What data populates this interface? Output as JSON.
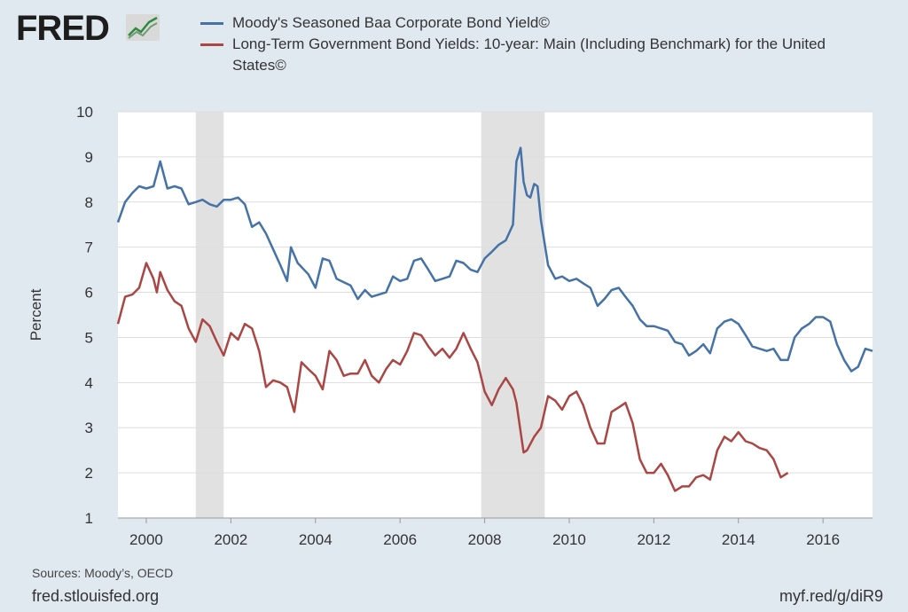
{
  "brand": {
    "name": "FRED",
    "icon": "chart-line-icon"
  },
  "colors": {
    "background": "#e1e9f0",
    "plot_bg": "#ffffff",
    "grid": "#dddddd",
    "recession": "#e1e1e1",
    "baa": "#4572a7",
    "treasury": "#aa4643",
    "text": "#333333"
  },
  "chart_data": {
    "type": "line",
    "title": "",
    "xlabel": "",
    "ylabel": "Percent",
    "xlim": [
      1999.33,
      2017.17
    ],
    "ylim": [
      1,
      10
    ],
    "y_ticks": [
      1,
      2,
      3,
      4,
      5,
      6,
      7,
      8,
      9,
      10
    ],
    "x_ticks": [
      2000,
      2002,
      2004,
      2006,
      2008,
      2010,
      2012,
      2014,
      2016
    ],
    "grid": true,
    "legend_position": "top",
    "recessions": [
      [
        2001.17,
        2001.83
      ],
      [
        2007.92,
        2009.42
      ]
    ],
    "series": [
      {
        "name": "Moody's Seasoned Baa Corporate Bond Yield©",
        "color": "#4572a7",
        "points": [
          [
            1999.33,
            7.55
          ],
          [
            1999.5,
            8.0
          ],
          [
            1999.67,
            8.2
          ],
          [
            1999.83,
            8.35
          ],
          [
            2000.0,
            8.3
          ],
          [
            2000.17,
            8.35
          ],
          [
            2000.33,
            8.9
          ],
          [
            2000.5,
            8.3
          ],
          [
            2000.67,
            8.35
          ],
          [
            2000.83,
            8.3
          ],
          [
            2001.0,
            7.95
          ],
          [
            2001.17,
            8.0
          ],
          [
            2001.33,
            8.05
          ],
          [
            2001.5,
            7.95
          ],
          [
            2001.67,
            7.9
          ],
          [
            2001.83,
            8.05
          ],
          [
            2002.0,
            8.05
          ],
          [
            2002.17,
            8.1
          ],
          [
            2002.33,
            7.95
          ],
          [
            2002.5,
            7.45
          ],
          [
            2002.67,
            7.55
          ],
          [
            2002.83,
            7.3
          ],
          [
            2003.0,
            6.95
          ],
          [
            2003.17,
            6.6
          ],
          [
            2003.33,
            6.25
          ],
          [
            2003.42,
            7.0
          ],
          [
            2003.58,
            6.65
          ],
          [
            2003.83,
            6.4
          ],
          [
            2004.0,
            6.1
          ],
          [
            2004.17,
            6.75
          ],
          [
            2004.33,
            6.7
          ],
          [
            2004.5,
            6.3
          ],
          [
            2004.83,
            6.15
          ],
          [
            2005.0,
            5.85
          ],
          [
            2005.17,
            6.05
          ],
          [
            2005.33,
            5.9
          ],
          [
            2005.67,
            6.0
          ],
          [
            2005.83,
            6.35
          ],
          [
            2006.0,
            6.25
          ],
          [
            2006.17,
            6.3
          ],
          [
            2006.33,
            6.7
          ],
          [
            2006.5,
            6.75
          ],
          [
            2006.67,
            6.5
          ],
          [
            2006.83,
            6.25
          ],
          [
            2007.0,
            6.3
          ],
          [
            2007.17,
            6.35
          ],
          [
            2007.33,
            6.7
          ],
          [
            2007.5,
            6.65
          ],
          [
            2007.67,
            6.5
          ],
          [
            2007.83,
            6.45
          ],
          [
            2008.0,
            6.75
          ],
          [
            2008.17,
            6.9
          ],
          [
            2008.33,
            7.05
          ],
          [
            2008.5,
            7.15
          ],
          [
            2008.67,
            7.5
          ],
          [
            2008.75,
            8.9
          ],
          [
            2008.85,
            9.2
          ],
          [
            2008.92,
            8.45
          ],
          [
            2009.0,
            8.15
          ],
          [
            2009.08,
            8.1
          ],
          [
            2009.17,
            8.4
          ],
          [
            2009.25,
            8.35
          ],
          [
            2009.33,
            7.6
          ],
          [
            2009.5,
            6.6
          ],
          [
            2009.67,
            6.3
          ],
          [
            2009.83,
            6.35
          ],
          [
            2010.0,
            6.25
          ],
          [
            2010.17,
            6.3
          ],
          [
            2010.33,
            6.2
          ],
          [
            2010.5,
            6.1
          ],
          [
            2010.67,
            5.7
          ],
          [
            2010.83,
            5.85
          ],
          [
            2011.0,
            6.05
          ],
          [
            2011.17,
            6.1
          ],
          [
            2011.33,
            5.9
          ],
          [
            2011.5,
            5.7
          ],
          [
            2011.67,
            5.4
          ],
          [
            2011.83,
            5.25
          ],
          [
            2012.0,
            5.25
          ],
          [
            2012.17,
            5.2
          ],
          [
            2012.33,
            5.15
          ],
          [
            2012.5,
            4.9
          ],
          [
            2012.67,
            4.85
          ],
          [
            2012.83,
            4.6
          ],
          [
            2013.0,
            4.7
          ],
          [
            2013.17,
            4.85
          ],
          [
            2013.33,
            4.65
          ],
          [
            2013.5,
            5.2
          ],
          [
            2013.67,
            5.35
          ],
          [
            2013.83,
            5.4
          ],
          [
            2014.0,
            5.3
          ],
          [
            2014.17,
            5.05
          ],
          [
            2014.33,
            4.8
          ],
          [
            2014.5,
            4.75
          ],
          [
            2014.67,
            4.7
          ],
          [
            2014.83,
            4.75
          ],
          [
            2015.0,
            4.5
          ],
          [
            2015.17,
            4.5
          ],
          [
            2015.33,
            5.0
          ],
          [
            2015.5,
            5.2
          ],
          [
            2015.67,
            5.3
          ],
          [
            2015.83,
            5.45
          ],
          [
            2016.0,
            5.45
          ],
          [
            2016.17,
            5.35
          ],
          [
            2016.33,
            4.85
          ],
          [
            2016.5,
            4.5
          ],
          [
            2016.67,
            4.25
          ],
          [
            2016.83,
            4.35
          ],
          [
            2017.0,
            4.75
          ],
          [
            2017.17,
            4.7
          ]
        ]
      },
      {
        "name": "Long-Term Government Bond Yields: 10-year: Main (Including Benchmark) for the United States©",
        "color": "#aa4643",
        "points": [
          [
            1999.33,
            5.3
          ],
          [
            1999.5,
            5.9
          ],
          [
            1999.67,
            5.95
          ],
          [
            1999.83,
            6.1
          ],
          [
            2000.0,
            6.65
          ],
          [
            2000.17,
            6.3
          ],
          [
            2000.25,
            6.0
          ],
          [
            2000.33,
            6.45
          ],
          [
            2000.5,
            6.05
          ],
          [
            2000.67,
            5.8
          ],
          [
            2000.83,
            5.7
          ],
          [
            2001.0,
            5.2
          ],
          [
            2001.17,
            4.9
          ],
          [
            2001.33,
            5.4
          ],
          [
            2001.5,
            5.25
          ],
          [
            2001.67,
            4.9
          ],
          [
            2001.83,
            4.6
          ],
          [
            2002.0,
            5.1
          ],
          [
            2002.17,
            4.95
          ],
          [
            2002.33,
            5.3
          ],
          [
            2002.5,
            5.2
          ],
          [
            2002.67,
            4.7
          ],
          [
            2002.83,
            3.9
          ],
          [
            2003.0,
            4.05
          ],
          [
            2003.17,
            4.0
          ],
          [
            2003.33,
            3.9
          ],
          [
            2003.5,
            3.35
          ],
          [
            2003.67,
            4.45
          ],
          [
            2003.83,
            4.3
          ],
          [
            2004.0,
            4.15
          ],
          [
            2004.17,
            3.85
          ],
          [
            2004.33,
            4.7
          ],
          [
            2004.5,
            4.5
          ],
          [
            2004.67,
            4.15
          ],
          [
            2004.83,
            4.2
          ],
          [
            2005.0,
            4.2
          ],
          [
            2005.17,
            4.5
          ],
          [
            2005.33,
            4.15
          ],
          [
            2005.5,
            4.0
          ],
          [
            2005.67,
            4.3
          ],
          [
            2005.83,
            4.5
          ],
          [
            2006.0,
            4.4
          ],
          [
            2006.17,
            4.7
          ],
          [
            2006.33,
            5.1
          ],
          [
            2006.5,
            5.05
          ],
          [
            2006.67,
            4.8
          ],
          [
            2006.83,
            4.6
          ],
          [
            2007.0,
            4.75
          ],
          [
            2007.17,
            4.55
          ],
          [
            2007.33,
            4.75
          ],
          [
            2007.5,
            5.1
          ],
          [
            2007.67,
            4.75
          ],
          [
            2007.83,
            4.45
          ],
          [
            2008.0,
            3.8
          ],
          [
            2008.17,
            3.5
          ],
          [
            2008.33,
            3.85
          ],
          [
            2008.5,
            4.1
          ],
          [
            2008.67,
            3.85
          ],
          [
            2008.75,
            3.55
          ],
          [
            2008.92,
            2.45
          ],
          [
            2009.0,
            2.5
          ],
          [
            2009.17,
            2.8
          ],
          [
            2009.33,
            3.0
          ],
          [
            2009.5,
            3.7
          ],
          [
            2009.67,
            3.6
          ],
          [
            2009.83,
            3.4
          ],
          [
            2010.0,
            3.7
          ],
          [
            2010.17,
            3.8
          ],
          [
            2010.33,
            3.5
          ],
          [
            2010.5,
            3.0
          ],
          [
            2010.67,
            2.65
          ],
          [
            2010.83,
            2.65
          ],
          [
            2011.0,
            3.35
          ],
          [
            2011.17,
            3.45
          ],
          [
            2011.33,
            3.55
          ],
          [
            2011.5,
            3.1
          ],
          [
            2011.67,
            2.3
          ],
          [
            2011.83,
            2.0
          ],
          [
            2012.0,
            2.0
          ],
          [
            2012.17,
            2.2
          ],
          [
            2012.33,
            1.95
          ],
          [
            2012.5,
            1.6
          ],
          [
            2012.67,
            1.7
          ],
          [
            2012.83,
            1.7
          ],
          [
            2013.0,
            1.9
          ],
          [
            2013.17,
            1.95
          ],
          [
            2013.33,
            1.85
          ],
          [
            2013.5,
            2.5
          ],
          [
            2013.67,
            2.8
          ],
          [
            2013.83,
            2.7
          ],
          [
            2014.0,
            2.9
          ],
          [
            2014.17,
            2.7
          ],
          [
            2014.33,
            2.65
          ],
          [
            2014.5,
            2.55
          ],
          [
            2014.67,
            2.5
          ],
          [
            2014.83,
            2.3
          ],
          [
            2015.0,
            1.9
          ],
          [
            2015.17,
            2.0
          ]
        ]
      }
    ]
  },
  "footer": {
    "sources": "Sources: Moody’s, OECD",
    "site": "fred.stlouisfed.org",
    "short_url": "myf.red/g/diR9"
  }
}
